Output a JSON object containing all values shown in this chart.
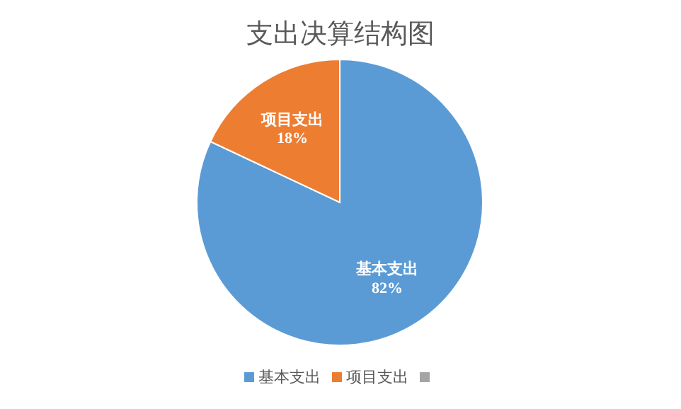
{
  "chart_data": {
    "type": "pie",
    "title": "支出决算结构图",
    "categories": [
      "基本支出",
      "项目支出",
      null
    ],
    "values": [
      82,
      18,
      0
    ],
    "colors": [
      "#5b9bd5",
      "#ed7d31",
      "#a5a5a5"
    ],
    "value_labels": [
      "82%",
      "18%",
      null
    ],
    "legend": "bottom"
  }
}
